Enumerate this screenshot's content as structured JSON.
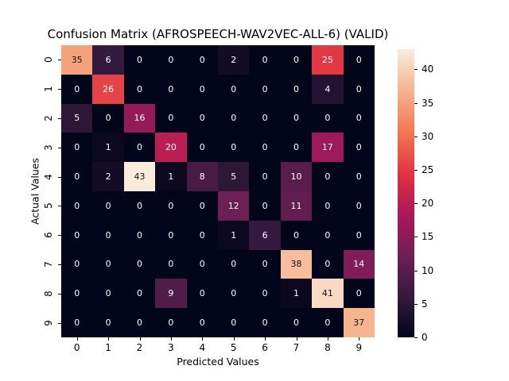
{
  "figure": {
    "background": "#ffffff"
  },
  "chart_data": {
    "type": "heatmap",
    "title": "Confusion Matrix (AFROSPEECH-WAV2VEC-ALL-6) (VALID)",
    "xlabel": "Predicted Values",
    "ylabel": "Actual Values",
    "x_ticklabels": [
      "0",
      "1",
      "2",
      "3",
      "4",
      "5",
      "6",
      "7",
      "8",
      "9"
    ],
    "y_ticklabels": [
      "0",
      "1",
      "2",
      "3",
      "4",
      "5",
      "6",
      "7",
      "8",
      "9"
    ],
    "matrix": [
      [
        35,
        6,
        0,
        0,
        0,
        2,
        0,
        0,
        25,
        0
      ],
      [
        0,
        26,
        0,
        0,
        0,
        0,
        0,
        0,
        4,
        0
      ],
      [
        5,
        0,
        16,
        0,
        0,
        0,
        0,
        0,
        0,
        0
      ],
      [
        0,
        1,
        0,
        20,
        0,
        0,
        0,
        0,
        17,
        0
      ],
      [
        0,
        2,
        43,
        1,
        8,
        5,
        0,
        10,
        0,
        0
      ],
      [
        0,
        0,
        0,
        0,
        0,
        12,
        0,
        11,
        0,
        0
      ],
      [
        0,
        0,
        0,
        0,
        0,
        1,
        6,
        0,
        0,
        0
      ],
      [
        0,
        0,
        0,
        0,
        0,
        0,
        0,
        38,
        0,
        14
      ],
      [
        0,
        0,
        0,
        9,
        0,
        0,
        0,
        1,
        41,
        0
      ],
      [
        0,
        0,
        0,
        0,
        0,
        0,
        0,
        0,
        0,
        37
      ]
    ],
    "vmin": 0,
    "vmax": 43,
    "colormap": {
      "name": "rocket",
      "anchors": [
        {
          "t": 0.0,
          "color": "#03051A"
        },
        {
          "t": 0.14,
          "color": "#35193E"
        },
        {
          "t": 0.29,
          "color": "#701F57"
        },
        {
          "t": 0.43,
          "color": "#AD1759"
        },
        {
          "t": 0.57,
          "color": "#E13342"
        },
        {
          "t": 0.71,
          "color": "#F37651"
        },
        {
          "t": 0.86,
          "color": "#F6B48F"
        },
        {
          "t": 1.0,
          "color": "#FAEBDD"
        }
      ]
    },
    "annot": {
      "light_text": "#ffffff",
      "dark_text": "#131313"
    },
    "colorbar": {
      "ticks": [
        "0",
        "5",
        "10",
        "15",
        "20",
        "25",
        "30",
        "35",
        "40"
      ],
      "tick_values": [
        0,
        5,
        10,
        15,
        20,
        25,
        30,
        35,
        40
      ]
    },
    "legend": null,
    "grid": false
  }
}
